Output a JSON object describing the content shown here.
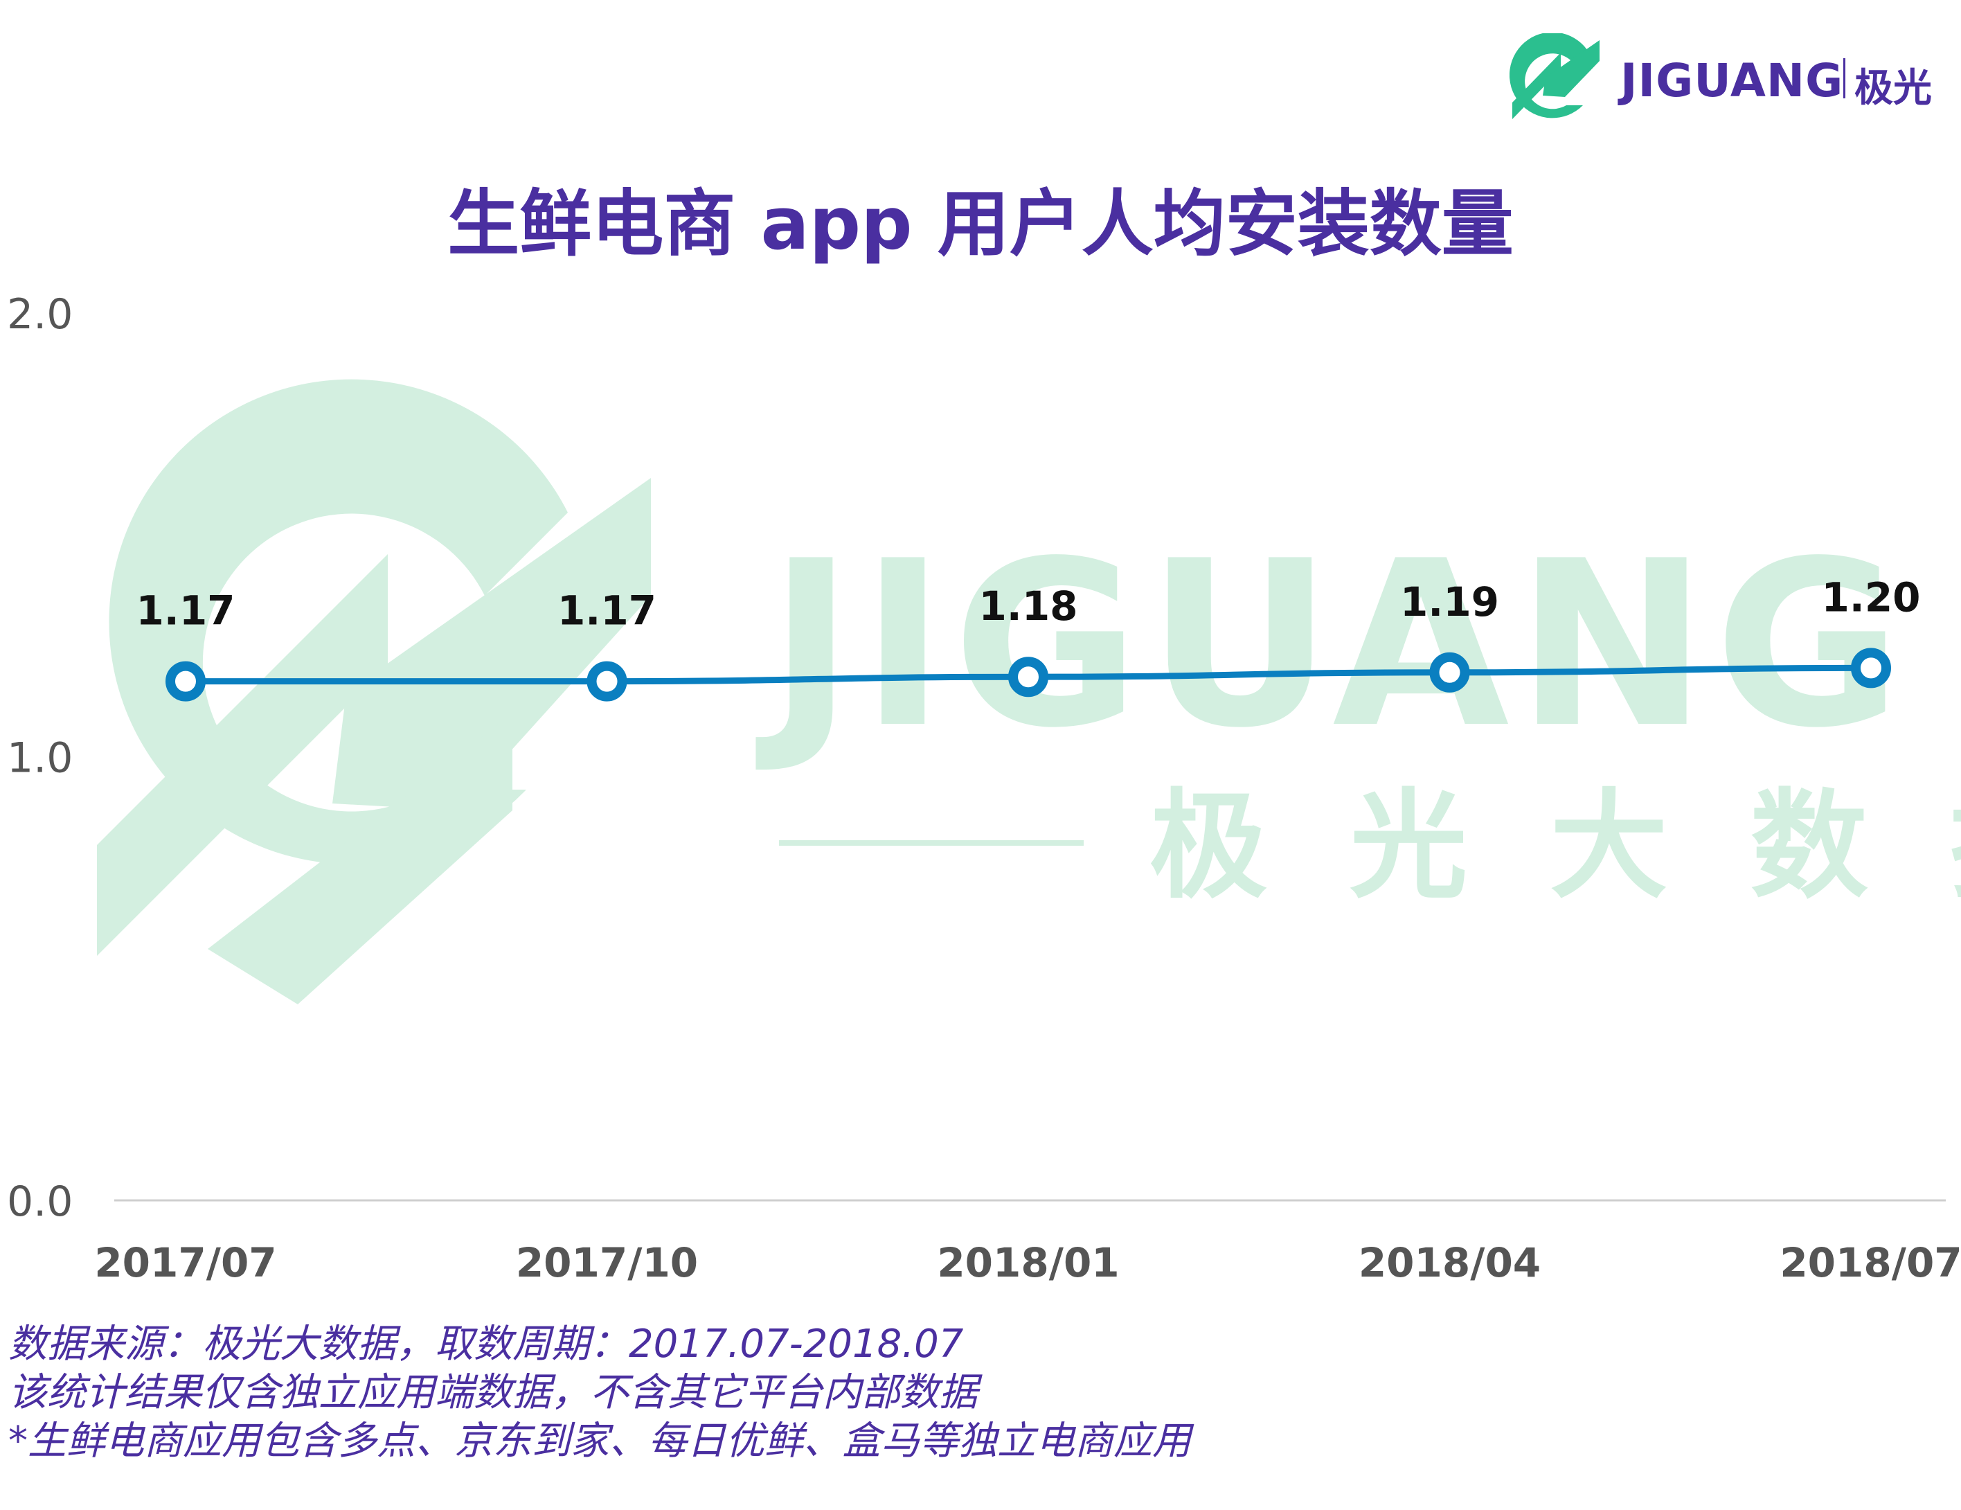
{
  "brand": {
    "name": "JIGUANG",
    "name_cn": "极光",
    "watermark_name": "JIGUANG",
    "watermark_cn": "极 光 大 数 据",
    "logo_color": "#2bbf8f",
    "watermark_color": "#d3efe0"
  },
  "chart_data": {
    "type": "line",
    "title": "生鲜电商 app 用户人均安装数量",
    "categories": [
      "2017/07",
      "2017/10",
      "2018/01",
      "2018/04",
      "2018/07"
    ],
    "series": [
      {
        "values": [
          1.17,
          1.17,
          1.18,
          1.19,
          1.2
        ],
        "color": "#0a7fc0"
      }
    ],
    "data_labels": [
      "1.17",
      "1.17",
      "1.18",
      "1.19",
      "1.20"
    ],
    "ylim": [
      0,
      2.0
    ],
    "yticks": [
      0.0,
      1.0,
      2.0
    ],
    "ytick_labels": [
      "0.0",
      "1.0",
      "2.0"
    ],
    "grid": false,
    "legend": "none",
    "title_color": "#4a2fa0",
    "axis_label_color": "#555555"
  },
  "notes": [
    "数据来源：极光大数据，取数周期：2017.07-2018.07",
    "该统计结果仅含独立应用端数据，不含其它平台内部数据",
    " *生鲜电商应用包含多点、京东到家、每日优鲜、盒马等独立电商应用"
  ]
}
